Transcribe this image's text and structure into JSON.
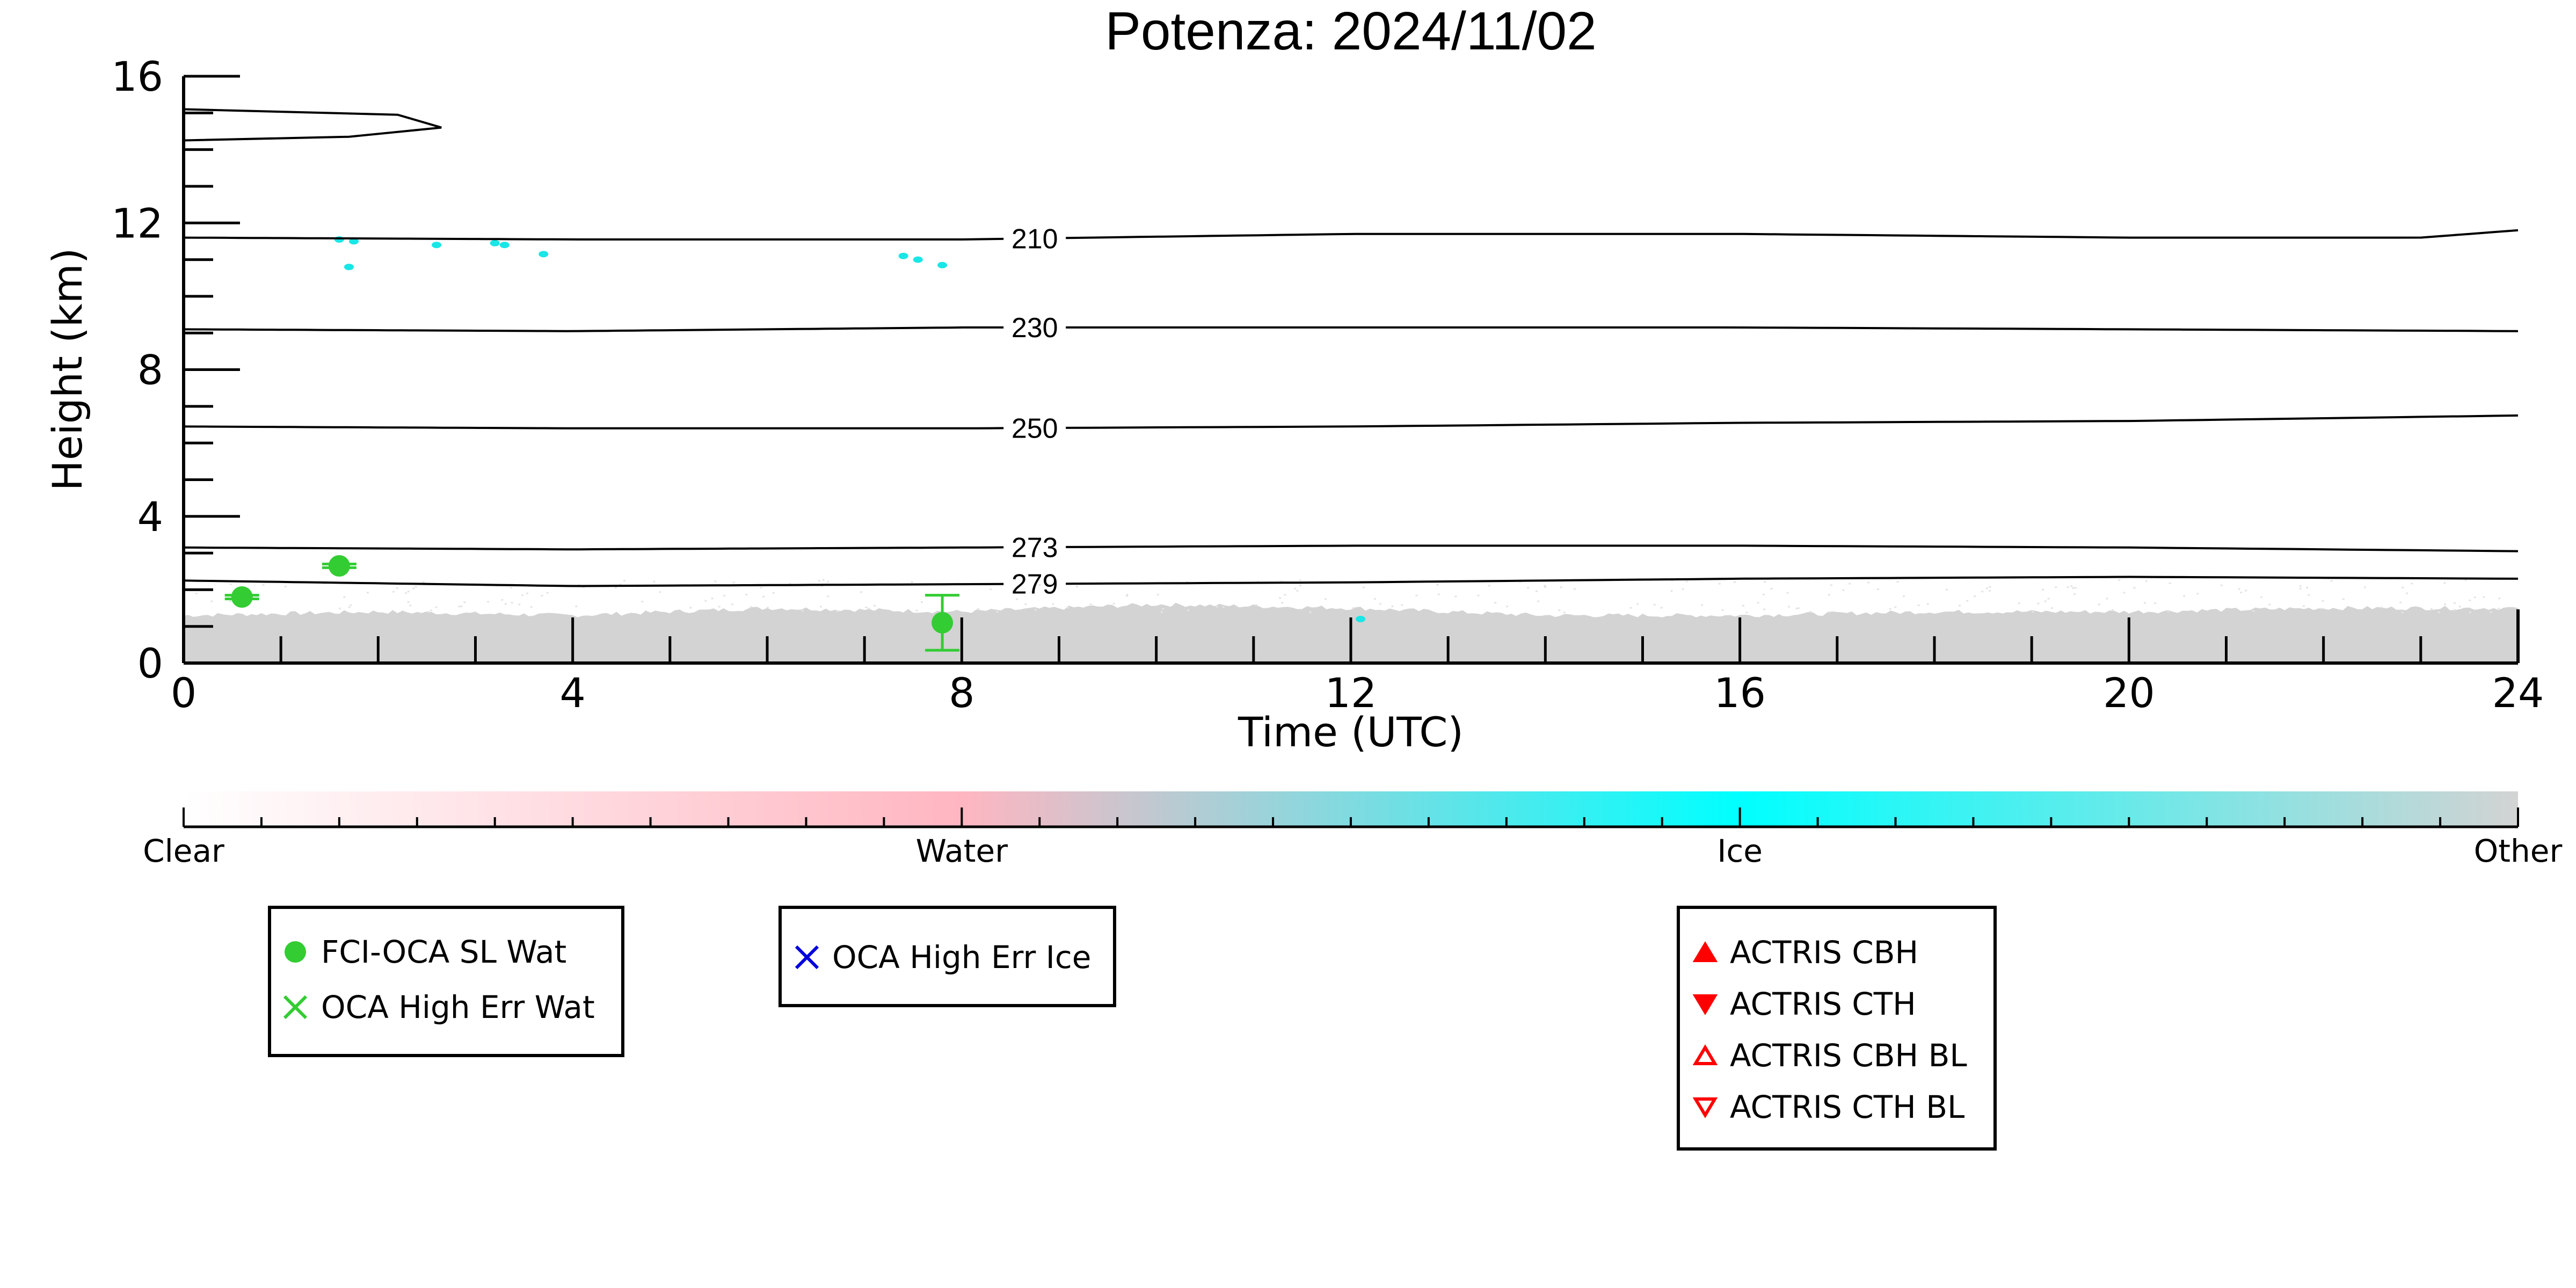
{
  "chart_data": {
    "type": "scatter",
    "title": "Potenza: 2024/11/02",
    "xlabel": "Time (UTC)",
    "ylabel": "Height (km)",
    "xlim": [
      0,
      24
    ],
    "ylim": [
      0,
      16
    ],
    "x_ticks": [
      "0",
      "4",
      "8",
      "12",
      "16",
      "20",
      "24"
    ],
    "y_ticks": [
      "0",
      "4",
      "8",
      "12",
      "16"
    ],
    "grid": false,
    "background_cloud_mask": {
      "description": "Target classification; gray 'Other' returns near the surface, sparse cyan ice near 11-11.7 km",
      "low_layer_top_km": [
        {
          "x": 0,
          "y": 1.3
        },
        {
          "x": 2,
          "y": 1.4
        },
        {
          "x": 4,
          "y": 1.3
        },
        {
          "x": 6,
          "y": 1.5
        },
        {
          "x": 8,
          "y": 1.4
        },
        {
          "x": 10,
          "y": 1.6
        },
        {
          "x": 12,
          "y": 1.5
        },
        {
          "x": 14,
          "y": 1.3
        },
        {
          "x": 16,
          "y": 1.3
        },
        {
          "x": 18,
          "y": 1.4
        },
        {
          "x": 20,
          "y": 1.4
        },
        {
          "x": 22,
          "y": 1.5
        },
        {
          "x": 24,
          "y": 1.5
        }
      ],
      "ice_patches": [
        {
          "x": 1.6,
          "y": 11.55
        },
        {
          "x": 1.75,
          "y": 11.5
        },
        {
          "x": 1.7,
          "y": 10.8
        },
        {
          "x": 2.6,
          "y": 11.4
        },
        {
          "x": 3.2,
          "y": 11.45
        },
        {
          "x": 3.3,
          "y": 11.4
        },
        {
          "x": 3.7,
          "y": 11.15
        },
        {
          "x": 7.4,
          "y": 11.1
        },
        {
          "x": 7.55,
          "y": 11.0
        },
        {
          "x": 7.8,
          "y": 10.85
        },
        {
          "x": 12.1,
          "y": 1.2
        }
      ]
    },
    "temperature_contours": [
      {
        "label": "210",
        "points": [
          [
            0,
            11.6
          ],
          [
            4,
            11.55
          ],
          [
            8,
            11.55
          ],
          [
            12,
            11.7
          ],
          [
            16,
            11.7
          ],
          [
            20,
            11.6
          ],
          [
            23,
            11.6
          ],
          [
            24,
            11.8
          ]
        ]
      },
      {
        "label": "230",
        "points": [
          [
            0,
            9.1
          ],
          [
            4,
            9.05
          ],
          [
            8,
            9.15
          ],
          [
            12,
            9.15
          ],
          [
            16,
            9.15
          ],
          [
            20,
            9.1
          ],
          [
            24,
            9.05
          ]
        ]
      },
      {
        "label": "250",
        "points": [
          [
            0,
            6.45
          ],
          [
            4,
            6.4
          ],
          [
            8,
            6.4
          ],
          [
            12,
            6.45
          ],
          [
            16,
            6.55
          ],
          [
            20,
            6.6
          ],
          [
            24,
            6.75
          ]
        ]
      },
      {
        "label": "273",
        "points": [
          [
            0,
            3.15
          ],
          [
            4,
            3.1
          ],
          [
            8,
            3.15
          ],
          [
            12,
            3.2
          ],
          [
            16,
            3.2
          ],
          [
            20,
            3.15
          ],
          [
            24,
            3.05
          ]
        ]
      },
      {
        "label": "279",
        "points": [
          [
            0,
            2.25
          ],
          [
            4,
            2.1
          ],
          [
            8,
            2.15
          ],
          [
            12,
            2.2
          ],
          [
            16,
            2.3
          ],
          [
            20,
            2.35
          ],
          [
            24,
            2.3
          ]
        ]
      }
    ],
    "upper_profile": [
      [
        0,
        15.1
      ],
      [
        2.2,
        14.95
      ],
      [
        2.65,
        14.6
      ],
      [
        1.7,
        14.35
      ],
      [
        0,
        14.25
      ]
    ],
    "series": [
      {
        "name": "FCI-OCA SL Wat",
        "marker": "circle-filled",
        "color": "#33cc33",
        "points": [
          {
            "x": 0.6,
            "y": 1.8,
            "err": 0.05
          },
          {
            "x": 1.6,
            "y": 2.65,
            "err": 0.05
          },
          {
            "x": 7.8,
            "y": 1.1,
            "err": 0.75
          }
        ]
      },
      {
        "name": "OCA High Err Wat",
        "marker": "x",
        "color": "#33cc33",
        "points": []
      },
      {
        "name": "OCA High Err Ice",
        "marker": "x",
        "color": "#0000dd",
        "points": []
      },
      {
        "name": "ACTRIS CBH",
        "marker": "triangle-up-filled",
        "color": "#ff0000",
        "points": []
      },
      {
        "name": "ACTRIS CTH",
        "marker": "triangle-down-filled",
        "color": "#ff0000",
        "points": []
      },
      {
        "name": "ACTRIS CBH BL",
        "marker": "triangle-up-open",
        "color": "#ff0000",
        "points": []
      },
      {
        "name": "ACTRIS CTH BL",
        "marker": "triangle-down-open",
        "color": "#ff0000",
        "points": []
      }
    ],
    "colorbar": {
      "labels": [
        "Clear",
        "Water",
        "Ice",
        "Other"
      ],
      "stops": [
        "#ffffff",
        "#ffb6c1",
        "#00ffff",
        "#d3d3d3"
      ]
    },
    "legend_groups": [
      [
        "FCI-OCA SL Wat",
        "OCA High Err Wat"
      ],
      [
        "OCA High Err Ice"
      ],
      [
        "ACTRIS CBH",
        "ACTRIS CTH",
        "ACTRIS CBH BL",
        "ACTRIS CTH BL"
      ]
    ]
  }
}
